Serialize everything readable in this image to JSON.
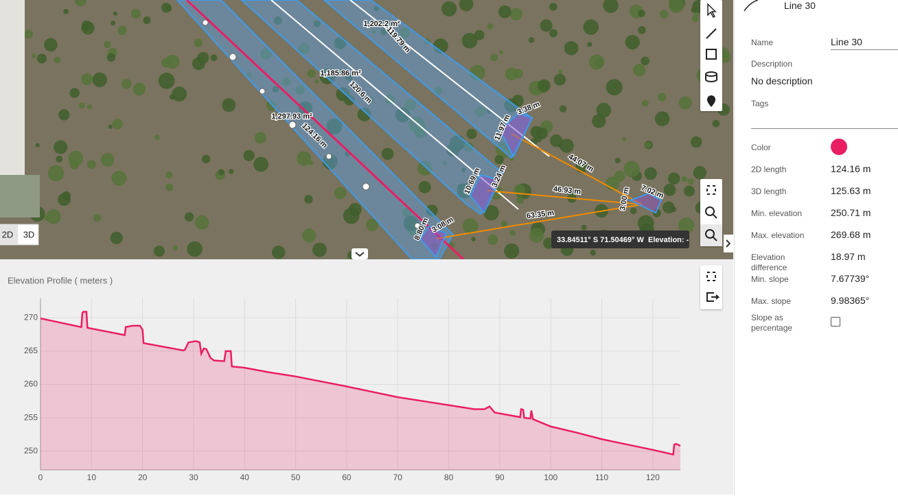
{
  "map": {
    "labels": [
      "1,202.2 m²",
      "119.79 m",
      "1,185.86 m²",
      "120.6 m",
      "1,297.93 m²",
      "124.16 m",
      "3.38 m",
      "11.97 m",
      "44.07 m",
      "10.69 m",
      "3.24 m",
      "46.93 m",
      "7.02 m",
      "3.00 m",
      "63.35 m",
      "8.80 m",
      "3.08 m"
    ],
    "coordinates": "33.84511° S 71.50469° W",
    "elevation": "Elevation: -",
    "view_2d": "2D",
    "view_3d": "3D"
  },
  "panel": {
    "title": "Line 30",
    "name_label": "Name",
    "name_value": "Line 30",
    "description_label": "Description",
    "description_value": "No description",
    "tags_label": "Tags",
    "color_label": "Color",
    "color": "#e91e63",
    "rows": [
      {
        "label": "2D length",
        "value": "124.16 m"
      },
      {
        "label": "3D length",
        "value": "125.63 m"
      },
      {
        "label": "Min. elevation",
        "value": "250.71 m"
      },
      {
        "label": "Max. elevation",
        "value": "269.68 m"
      },
      {
        "label": "Elevation difference",
        "value": "18.97 m"
      },
      {
        "label": "Min. slope",
        "value": "7.67739°"
      },
      {
        "label": "Max. slope",
        "value": "9.98365°"
      }
    ],
    "slope_label": "Slope as percentage"
  },
  "chart_data": {
    "type": "area",
    "title": "Elevation Profile ( meters )",
    "x": [
      0,
      8,
      8.2,
      8.4,
      9.0,
      9.2,
      16.5,
      16.7,
      18,
      19.5,
      20,
      20.2,
      28,
      28.3,
      29,
      30.5,
      31.2,
      31.5,
      32,
      32.5,
      33.3,
      34,
      36,
      36.3,
      37.3,
      37.5,
      40,
      45,
      50,
      56,
      60,
      65,
      70,
      75,
      80,
      85,
      87,
      88,
      89,
      94,
      94.2,
      94.6,
      94.8,
      96,
      96.2,
      96.5,
      100,
      105,
      110,
      115,
      120,
      124,
      124.2,
      124.6,
      125.4
    ],
    "values": [
      269.9,
      268.6,
      270.7,
      270.9,
      270.9,
      268.5,
      267.4,
      268.6,
      268.8,
      268.8,
      268.2,
      266.2,
      265.1,
      265.2,
      266.3,
      266.5,
      266.3,
      264.6,
      265.4,
      265.3,
      264.0,
      263.6,
      263.5,
      265.0,
      265.0,
      262.7,
      262.5,
      261.8,
      261.2,
      260.3,
      259.7,
      258.9,
      258.1,
      257.5,
      256.9,
      256.3,
      256.3,
      256.7,
      255.8,
      255.1,
      256.3,
      256.2,
      255.0,
      254.9,
      256.1,
      254.8,
      253.7,
      252.8,
      251.8,
      251.0,
      250.2,
      249.5,
      251.0,
      251.1,
      250.8
    ],
    "color": "#e91e63",
    "xlim": [
      0,
      125.4
    ],
    "ylim": [
      247.2,
      272.9
    ],
    "xticks": [
      0,
      10,
      20,
      30,
      40,
      50,
      60,
      70,
      80,
      90,
      100,
      110,
      120
    ],
    "yticks": [
      250,
      255,
      260,
      265,
      270
    ],
    "grid": true
  }
}
